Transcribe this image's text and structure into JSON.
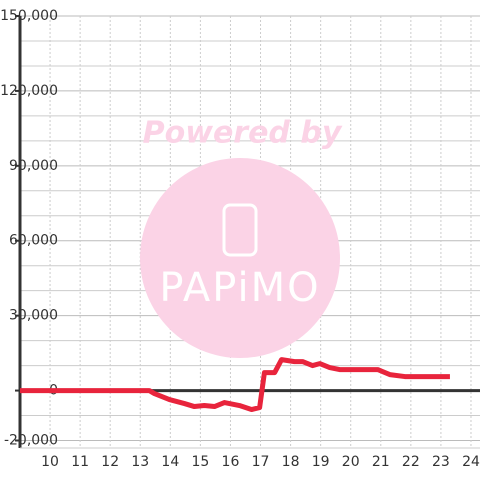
{
  "chart_data": {
    "type": "line",
    "watermark": {
      "line1": "Powered by",
      "line2": "PAPiMO"
    },
    "x": [
      9,
      13.3,
      13.47,
      13.97,
      14.47,
      14.8,
      15.13,
      15.47,
      15.8,
      16.3,
      16.7,
      16.97,
      17.13,
      17.47,
      17.7,
      18.13,
      18.4,
      18.73,
      18.97,
      19.3,
      19.63,
      20.3,
      20.9,
      21.3,
      21.8,
      23.3
    ],
    "series": [
      {
        "color": "#e8243c",
        "values": [
          0,
          0,
          -1200,
          -3600,
          -5200,
          -6400,
          -6000,
          -6400,
          -4800,
          -6000,
          -7600,
          -6800,
          7200,
          7200,
          12400,
          11600,
          11600,
          10000,
          10800,
          9200,
          8400,
          8400,
          8400,
          6400,
          5600,
          5600
        ]
      }
    ],
    "xlim": [
      9,
      24.3
    ],
    "xticks": [
      10,
      11,
      12,
      13,
      14,
      15,
      16,
      17,
      18,
      19,
      20,
      21,
      22,
      23,
      24
    ],
    "ylim": [
      -23000,
      150000
    ],
    "yticks": [
      {
        "value": -20000,
        "label": "-20,000"
      },
      0,
      {
        "value": 30000,
        "label": "30,000"
      },
      {
        "value": 60000,
        "label": "60,000"
      },
      {
        "value": 90000,
        "label": "90,000"
      },
      {
        "value": 120000,
        "label": "120,000"
      },
      {
        "value": 150000,
        "label": "150,000"
      }
    ],
    "y_minor_grid": [
      -10000,
      10000,
      20000,
      40000,
      50000,
      70000,
      80000,
      100000,
      110000,
      130000,
      140000
    ],
    "grid": true
  }
}
